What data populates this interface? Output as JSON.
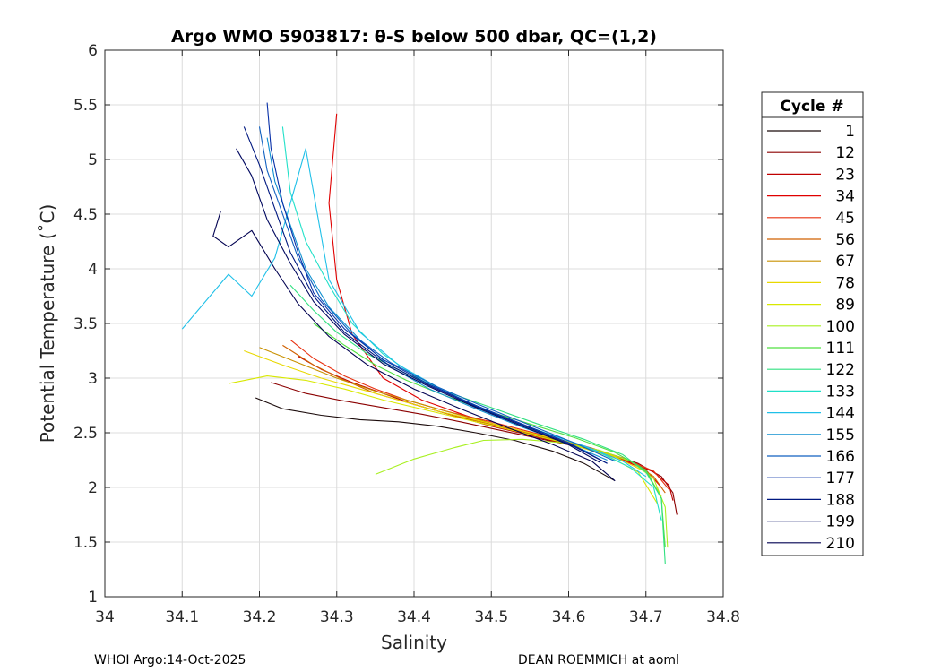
{
  "chart_data": {
    "type": "line",
    "title": "Argo WMO 5903817: θ-S below 500 dbar,  QC=(1,2)",
    "xlabel": "Salinity",
    "ylabel": "Potential Temperature (˚C)",
    "xlim": [
      34,
      34.8
    ],
    "ylim": [
      1,
      6
    ],
    "xticks": [
      "34",
      "34.1",
      "34.2",
      "34.3",
      "34.4",
      "34.5",
      "34.6",
      "34.7",
      "34.8"
    ],
    "yticks": [
      "1",
      "1.5",
      "2",
      "2.5",
      "3",
      "3.5",
      "4",
      "4.5",
      "5",
      "5.5",
      "6"
    ],
    "grid": true,
    "legend": {
      "title": "Cycle #",
      "placement": "right",
      "entries": [
        "1",
        "12",
        "23",
        "34",
        "45",
        "56",
        "67",
        "78",
        "89",
        "100",
        "111",
        "122",
        "133",
        "144",
        "155",
        "166",
        "177",
        "188",
        "199",
        "210"
      ],
      "colors": [
        "#1a0a0a",
        "#8b0000",
        "#c00000",
        "#e00000",
        "#e83010",
        "#d06000",
        "#c89000",
        "#e8d800",
        "#d8e800",
        "#a8f020",
        "#50e040",
        "#30e080",
        "#20e0c8",
        "#20c0e8",
        "#1090d0",
        "#1060c0",
        "#0830a8",
        "#001880",
        "#000860",
        "#000050"
      ]
    },
    "series": [
      {
        "name": "1",
        "x": [
          34.195,
          34.23,
          34.28,
          34.33,
          34.38,
          34.43,
          34.48,
          34.53,
          34.58,
          34.62,
          34.66
        ],
        "y": [
          2.82,
          2.72,
          2.66,
          2.62,
          2.6,
          2.56,
          2.5,
          2.43,
          2.33,
          2.22,
          2.06
        ]
      },
      {
        "name": "12",
        "x": [
          34.215,
          34.26,
          34.31,
          34.36,
          34.41,
          34.46,
          34.52,
          34.58,
          34.64,
          34.69,
          34.72,
          34.735,
          34.74
        ],
        "y": [
          2.96,
          2.86,
          2.79,
          2.73,
          2.67,
          2.6,
          2.51,
          2.42,
          2.33,
          2.22,
          2.1,
          1.95,
          1.75
        ]
      },
      {
        "name": "23",
        "x": [
          34.25,
          34.28,
          34.32,
          34.36,
          34.4,
          34.45,
          34.5,
          34.56,
          34.62,
          34.67,
          34.71,
          34.73,
          34.735
        ],
        "y": [
          3.2,
          3.08,
          2.96,
          2.86,
          2.76,
          2.66,
          2.56,
          2.46,
          2.36,
          2.26,
          2.14,
          2.02,
          1.88
        ]
      },
      {
        "name": "34",
        "x": [
          34.3,
          34.29,
          34.3,
          34.32,
          34.36,
          34.41,
          34.47,
          34.53,
          34.6,
          34.66,
          34.7,
          34.72
        ],
        "y": [
          5.42,
          4.6,
          3.9,
          3.4,
          3.0,
          2.8,
          2.65,
          2.52,
          2.4,
          2.28,
          2.16,
          2.0
        ]
      },
      {
        "name": "45",
        "x": [
          34.24,
          34.27,
          34.31,
          34.35,
          34.39,
          34.44,
          34.5,
          34.56,
          34.62,
          34.67,
          34.71,
          34.73
        ],
        "y": [
          3.35,
          3.18,
          3.02,
          2.9,
          2.8,
          2.7,
          2.6,
          2.49,
          2.38,
          2.27,
          2.15,
          1.98
        ]
      },
      {
        "name": "56",
        "x": [
          34.23,
          34.27,
          34.31,
          34.35,
          34.4,
          34.45,
          34.51,
          34.57,
          34.63,
          34.68,
          34.71,
          34.725
        ],
        "y": [
          3.3,
          3.12,
          2.98,
          2.86,
          2.76,
          2.66,
          2.56,
          2.46,
          2.36,
          2.24,
          2.1,
          1.95
        ]
      },
      {
        "name": "67",
        "x": [
          34.2,
          34.25,
          34.3,
          34.35,
          34.4,
          34.45,
          34.51,
          34.57,
          34.63,
          34.68,
          34.71
        ],
        "y": [
          3.28,
          3.14,
          3.0,
          2.88,
          2.78,
          2.68,
          2.57,
          2.46,
          2.35,
          2.24,
          2.1
        ]
      },
      {
        "name": "78",
        "x": [
          34.18,
          34.23,
          34.28,
          34.33,
          34.38,
          34.43,
          34.49,
          34.55,
          34.61,
          34.66,
          34.7,
          34.72
        ],
        "y": [
          3.25,
          3.12,
          3.0,
          2.9,
          2.8,
          2.7,
          2.6,
          2.5,
          2.4,
          2.28,
          2.14,
          1.92
        ]
      },
      {
        "name": "89",
        "x": [
          34.16,
          34.21,
          34.26,
          34.31,
          34.36,
          34.42,
          34.48,
          34.54,
          34.6,
          34.65,
          34.69,
          34.715
        ],
        "y": [
          2.95,
          3.02,
          2.98,
          2.9,
          2.8,
          2.7,
          2.6,
          2.5,
          2.4,
          2.29,
          2.14,
          1.85
        ]
      },
      {
        "name": "100",
        "x": [
          34.35,
          34.4,
          34.45,
          34.49,
          34.54,
          34.59,
          34.64,
          34.68,
          34.71,
          34.725,
          34.728
        ],
        "y": [
          2.12,
          2.26,
          2.36,
          2.43,
          2.44,
          2.41,
          2.34,
          2.24,
          2.08,
          1.82,
          1.45
        ]
      },
      {
        "name": "111",
        "x": [
          34.27,
          34.31,
          34.35,
          34.39,
          34.44,
          34.49,
          34.55,
          34.61,
          34.66,
          34.7,
          34.72,
          34.725
        ],
        "y": [
          3.5,
          3.3,
          3.12,
          2.98,
          2.84,
          2.71,
          2.58,
          2.45,
          2.32,
          2.16,
          1.9,
          1.45
        ]
      },
      {
        "name": "122",
        "x": [
          34.24,
          34.27,
          34.3,
          34.34,
          34.39,
          34.44,
          34.5,
          34.56,
          34.62,
          34.67,
          34.7,
          34.72,
          34.725
        ],
        "y": [
          3.85,
          3.62,
          3.42,
          3.22,
          3.04,
          2.88,
          2.73,
          2.58,
          2.44,
          2.3,
          2.14,
          1.9,
          1.3
        ]
      },
      {
        "name": "133",
        "x": [
          34.23,
          34.24,
          34.26,
          34.29,
          34.32,
          34.36,
          34.41,
          34.47,
          34.53,
          34.59,
          34.64,
          34.68,
          34.71,
          34.72
        ],
        "y": [
          5.3,
          4.7,
          4.25,
          3.85,
          3.5,
          3.22,
          2.98,
          2.78,
          2.6,
          2.45,
          2.32,
          2.18,
          2.0,
          1.7
        ]
      },
      {
        "name": "144",
        "x": [
          34.1,
          34.13,
          34.16,
          34.19,
          34.22,
          34.24,
          34.26,
          34.29,
          34.33,
          34.38,
          34.44,
          34.5,
          34.56,
          34.62,
          34.67,
          34.7
        ],
        "y": [
          3.45,
          3.7,
          3.95,
          3.75,
          4.1,
          4.6,
          5.1,
          3.9,
          3.42,
          3.12,
          2.88,
          2.68,
          2.52,
          2.38,
          2.24,
          2.1
        ]
      },
      {
        "name": "155",
        "x": [
          34.21,
          34.22,
          34.24,
          34.26,
          34.29,
          34.33,
          34.37,
          34.42,
          34.48,
          34.54,
          34.6,
          34.65
        ],
        "y": [
          5.2,
          4.8,
          4.4,
          4.0,
          3.65,
          3.35,
          3.1,
          2.9,
          2.72,
          2.55,
          2.4,
          2.25
        ]
      },
      {
        "name": "166",
        "x": [
          34.2,
          34.21,
          34.23,
          34.25,
          34.28,
          34.32,
          34.37,
          34.43,
          34.49,
          34.55,
          34.61,
          34.66
        ],
        "y": [
          5.3,
          4.9,
          4.5,
          4.1,
          3.72,
          3.4,
          3.14,
          2.92,
          2.74,
          2.57,
          2.4,
          2.24
        ]
      },
      {
        "name": "177",
        "x": [
          34.21,
          34.215,
          34.23,
          34.25,
          34.27,
          34.31,
          34.36,
          34.42,
          34.48,
          34.54,
          34.6,
          34.65
        ],
        "y": [
          5.52,
          5.1,
          4.6,
          4.15,
          3.78,
          3.45,
          3.17,
          2.94,
          2.75,
          2.58,
          2.41,
          2.22
        ]
      },
      {
        "name": "188",
        "x": [
          34.18,
          34.2,
          34.22,
          34.24,
          34.27,
          34.31,
          34.36,
          34.42,
          34.48,
          34.54,
          34.6,
          34.65
        ],
        "y": [
          5.3,
          4.95,
          4.55,
          4.15,
          3.75,
          3.42,
          3.15,
          2.93,
          2.74,
          2.57,
          2.4,
          2.22
        ]
      },
      {
        "name": "199",
        "x": [
          34.17,
          34.19,
          34.21,
          34.24,
          34.27,
          34.31,
          34.36,
          34.42,
          34.48,
          34.54,
          34.6,
          34.64
        ],
        "y": [
          5.1,
          4.85,
          4.45,
          4.05,
          3.7,
          3.4,
          3.13,
          2.92,
          2.73,
          2.56,
          2.39,
          2.23
        ]
      },
      {
        "name": "210",
        "x": [
          34.15,
          34.14,
          34.16,
          34.19,
          34.22,
          34.25,
          34.29,
          34.34,
          34.4,
          34.46,
          34.52,
          34.58,
          34.63,
          34.66
        ],
        "y": [
          4.53,
          4.3,
          4.2,
          4.35,
          4.0,
          3.68,
          3.38,
          3.12,
          2.9,
          2.72,
          2.55,
          2.39,
          2.24,
          2.06
        ]
      }
    ]
  },
  "footer": {
    "left": "WHOI Argo:14-Oct-2025",
    "right": "DEAN ROEMMICH at aoml"
  }
}
